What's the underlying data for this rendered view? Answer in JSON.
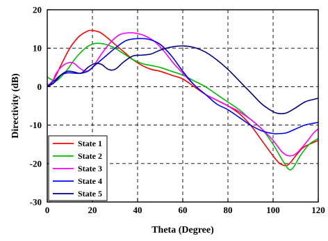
{
  "chart_data": {
    "type": "line",
    "title": "",
    "xlabel": "Theta (Degree)",
    "ylabel": "Directivity (dB)",
    "xlim": [
      0,
      120
    ],
    "ylim": [
      -30,
      20
    ],
    "x_ticks": [
      0,
      20,
      40,
      60,
      80,
      100,
      120
    ],
    "y_ticks": [
      20,
      10,
      0,
      -10,
      -20,
      -30
    ],
    "grid": true,
    "legend_position": "bottom-left",
    "series": [
      {
        "name": "State 1",
        "color": "#ff0000",
        "x": [
          0,
          3,
          6,
          10,
          14,
          18,
          20,
          23,
          26,
          30,
          34,
          38,
          42,
          46,
          50,
          55,
          60,
          65,
          70,
          75,
          80,
          85,
          90,
          95,
          100,
          103,
          106,
          108,
          110,
          113,
          116,
          120
        ],
        "y": [
          0,
          2,
          5.5,
          10,
          13,
          14.5,
          14.6,
          14.2,
          13,
          11,
          9,
          7,
          5.5,
          4.5,
          4,
          3,
          2,
          0,
          -2,
          -3.5,
          -5,
          -7,
          -10,
          -14,
          -18,
          -20,
          -20.5,
          -19.5,
          -18,
          -16,
          -15,
          -14
        ]
      },
      {
        "name": "State 2",
        "color": "#00bb00",
        "x": [
          0,
          2,
          4,
          6,
          9,
          12,
          15,
          18,
          21,
          24,
          27,
          30,
          34,
          38,
          42,
          46,
          50,
          55,
          60,
          65,
          70,
          75,
          80,
          85,
          90,
          95,
          100,
          104,
          107,
          109,
          112,
          116,
          120
        ],
        "y": [
          2.5,
          1.8,
          1.5,
          2.5,
          4.5,
          7,
          9,
          10.5,
          11.2,
          11.2,
          10.8,
          10,
          8.5,
          7,
          6,
          5.5,
          5,
          4,
          3,
          1.5,
          0,
          -2,
          -4,
          -6,
          -8.5,
          -11,
          -15,
          -19,
          -21.5,
          -21,
          -18,
          -15,
          -13.5
        ]
      },
      {
        "name": "State 3",
        "color": "#ff00ff",
        "x": [
          0,
          2,
          4,
          7,
          10,
          12,
          14,
          17,
          20,
          24,
          28,
          32,
          36,
          40,
          44,
          48,
          52,
          56,
          60,
          65,
          70,
          75,
          80,
          85,
          90,
          95,
          100,
          104,
          107,
          110,
          114,
          118,
          120
        ],
        "y": [
          0.5,
          1,
          3.5,
          5.5,
          6.3,
          6,
          5,
          4,
          5,
          8.5,
          11.5,
          13.5,
          14,
          13.8,
          13,
          11.5,
          9,
          6,
          3.5,
          0.5,
          -2,
          -3.5,
          -5,
          -6.5,
          -8.5,
          -11,
          -14,
          -17,
          -18,
          -17.5,
          -15,
          -12,
          -11
        ]
      },
      {
        "name": "State 4",
        "color": "#0000ff",
        "x": [
          0,
          3,
          6,
          9,
          12,
          15,
          18,
          21,
          25,
          30,
          35,
          40,
          45,
          50,
          55,
          60,
          65,
          70,
          75,
          80,
          85,
          90,
          95,
          100,
          103,
          106,
          110,
          114,
          118,
          120
        ],
        "y": [
          0,
          1.5,
          3,
          3.6,
          3.5,
          3.5,
          4,
          5.5,
          7.5,
          10,
          12,
          12.5,
          12.3,
          11,
          8,
          4,
          0.5,
          -2,
          -4.5,
          -6,
          -8,
          -10,
          -11.5,
          -12.2,
          -12.2,
          -12,
          -11,
          -10,
          -9.5,
          -9.3
        ]
      },
      {
        "name": "State 5",
        "color": "#000080",
        "x": [
          0,
          3,
          6,
          9,
          12,
          15,
          18,
          21,
          24,
          27,
          30,
          34,
          38,
          42,
          46,
          50,
          55,
          60,
          65,
          70,
          75,
          80,
          85,
          90,
          95,
          100,
          103,
          106,
          110,
          114,
          118,
          120
        ],
        "y": [
          0,
          1,
          3,
          4,
          3.8,
          3.5,
          5,
          6,
          5.8,
          4.5,
          4.5,
          6.5,
          8,
          8.2,
          8.5,
          9.5,
          10.3,
          10.6,
          10.2,
          9,
          7,
          4.5,
          1.5,
          -1.5,
          -4.5,
          -6.5,
          -7,
          -6.8,
          -5.5,
          -4,
          -3.3,
          -3
        ]
      }
    ]
  }
}
